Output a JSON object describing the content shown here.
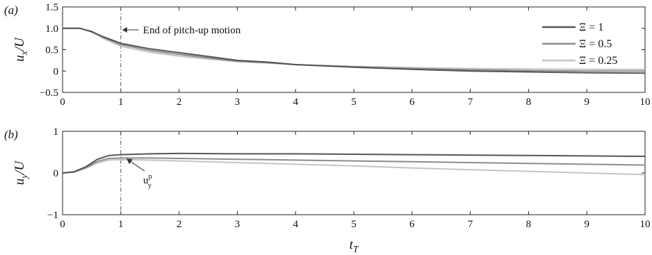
{
  "chart_data": [
    {
      "type": "line",
      "panel_label": "(a)",
      "ylabel": "u_x/U",
      "xlabel": "",
      "xlim": [
        0,
        10
      ],
      "ylim": [
        -0.5,
        1.5
      ],
      "xticks": [
        "0",
        "1",
        "2",
        "3",
        "4",
        "5",
        "6",
        "7",
        "8",
        "9",
        "10"
      ],
      "yticks": [
        "−0.5",
        "0",
        "0.5",
        "1.0",
        "1.5"
      ],
      "ytick_values": [
        -0.5,
        0,
        0.5,
        1.0,
        1.5
      ],
      "grid": false,
      "legend_position": "top-right",
      "annotation": {
        "text": "End of pitch-up motion",
        "x": 1
      },
      "vline_x": 1,
      "series": [
        {
          "name": "Ξ = 1",
          "color": "#555555",
          "x": [
            0,
            0.3,
            0.5,
            0.7,
            1,
            1.5,
            2,
            2.5,
            3,
            3.5,
            4,
            5,
            6,
            7,
            8,
            9,
            10
          ],
          "y": [
            1.0,
            1.0,
            0.92,
            0.8,
            0.65,
            0.52,
            0.43,
            0.34,
            0.25,
            0.21,
            0.15,
            0.09,
            0.04,
            0.0,
            -0.02,
            -0.04,
            -0.05
          ]
        },
        {
          "name": "Ξ = 0.5",
          "color": "#8c8c8c",
          "x": [
            0,
            0.3,
            0.5,
            0.7,
            1,
            1.5,
            2,
            2.5,
            3,
            3.5,
            4,
            5,
            6,
            7,
            8,
            9,
            10
          ],
          "y": [
            1.0,
            1.0,
            0.93,
            0.79,
            0.62,
            0.48,
            0.39,
            0.31,
            0.23,
            0.2,
            0.15,
            0.1,
            0.06,
            0.03,
            0.01,
            0.0,
            0.0
          ]
        },
        {
          "name": "Ξ = 0.25",
          "color": "#c4c4c4",
          "x": [
            0,
            0.3,
            0.5,
            0.7,
            1,
            1.5,
            2,
            2.5,
            3,
            3.5,
            4,
            5,
            6,
            7,
            8,
            9,
            10
          ],
          "y": [
            1.0,
            1.0,
            0.92,
            0.76,
            0.58,
            0.44,
            0.35,
            0.28,
            0.22,
            0.19,
            0.15,
            0.11,
            0.08,
            0.06,
            0.05,
            0.04,
            0.04
          ]
        }
      ]
    },
    {
      "type": "line",
      "panel_label": "(b)",
      "ylabel": "u_y/U",
      "xlabel": "t_T",
      "xlim": [
        0,
        10
      ],
      "ylim": [
        -1,
        1
      ],
      "xticks": [
        "0",
        "1",
        "2",
        "3",
        "4",
        "5",
        "6",
        "7",
        "8",
        "9",
        "10"
      ],
      "yticks": [
        "−1",
        "0",
        "1"
      ],
      "ytick_values": [
        -1,
        0,
        1
      ],
      "grid": false,
      "annotation": {
        "text": "u_y^p",
        "x": 1.05,
        "y": 0.38
      },
      "vline_x": 1,
      "series": [
        {
          "name": "Ξ = 1",
          "color": "#555555",
          "x": [
            0,
            0.2,
            0.4,
            0.6,
            0.8,
            1,
            1.5,
            2,
            3,
            4,
            5,
            6,
            7,
            8,
            9,
            10
          ],
          "y": [
            0,
            0.03,
            0.15,
            0.33,
            0.42,
            0.44,
            0.46,
            0.47,
            0.46,
            0.46,
            0.45,
            0.44,
            0.43,
            0.42,
            0.41,
            0.4
          ]
        },
        {
          "name": "Ξ = 0.5",
          "color": "#8c8c8c",
          "x": [
            0,
            0.2,
            0.4,
            0.6,
            0.8,
            1,
            1.5,
            2,
            3,
            4,
            5,
            6,
            7,
            8,
            9,
            10
          ],
          "y": [
            0,
            0.03,
            0.13,
            0.28,
            0.35,
            0.36,
            0.36,
            0.35,
            0.33,
            0.31,
            0.29,
            0.27,
            0.25,
            0.23,
            0.21,
            0.19
          ]
        },
        {
          "name": "Ξ = 0.25",
          "color": "#c4c4c4",
          "x": [
            0,
            0.2,
            0.4,
            0.6,
            0.8,
            1,
            1.5,
            2,
            3,
            4,
            5,
            6,
            7,
            8,
            9,
            10
          ],
          "y": [
            0,
            0.02,
            0.11,
            0.24,
            0.31,
            0.32,
            0.31,
            0.29,
            0.25,
            0.21,
            0.17,
            0.12,
            0.08,
            0.04,
            0.0,
            -0.04
          ]
        }
      ]
    }
  ]
}
